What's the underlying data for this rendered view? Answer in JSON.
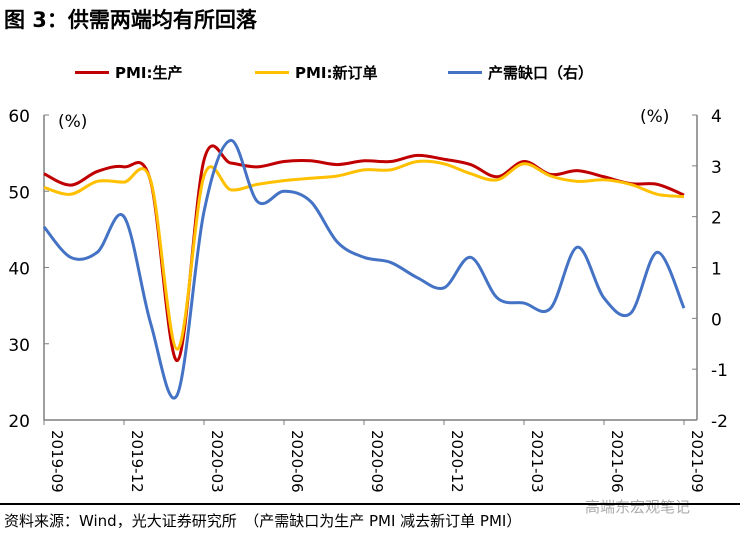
{
  "title": "图 3：供需两端均有所回落",
  "chart_data": {
    "type": "line",
    "x": [
      "2019-09",
      "2019-10",
      "2019-11",
      "2019-12",
      "2020-01",
      "2020-02",
      "2020-03",
      "2020-04",
      "2020-05",
      "2020-06",
      "2020-07",
      "2020-08",
      "2020-09",
      "2020-10",
      "2020-11",
      "2020-12",
      "2021-01",
      "2021-02",
      "2021-03",
      "2021-04",
      "2021-05",
      "2021-06",
      "2021-07",
      "2021-08",
      "2021-09"
    ],
    "xticklabels": [
      "2019-09",
      "2019-12",
      "2020-03",
      "2020-06",
      "2020-09",
      "2020-12",
      "2021-03",
      "2021-06",
      "2021-09"
    ],
    "series": [
      {
        "name": "PMI:生产",
        "axis": "left",
        "color": "#C00000",
        "values": [
          52.3,
          50.8,
          52.6,
          53.2,
          51.3,
          27.8,
          54.1,
          53.7,
          53.2,
          53.9,
          54.0,
          53.5,
          54.0,
          53.9,
          54.7,
          54.2,
          53.5,
          51.9,
          53.9,
          52.2,
          52.7,
          51.9,
          51.0,
          50.9,
          49.5
        ]
      },
      {
        "name": "PMI:新订单",
        "axis": "left",
        "color": "#FFC000",
        "values": [
          50.5,
          49.6,
          51.3,
          51.2,
          51.4,
          29.3,
          52.0,
          50.2,
          50.9,
          51.4,
          51.7,
          52.0,
          52.8,
          52.8,
          53.9,
          53.6,
          52.3,
          51.5,
          53.6,
          52.0,
          51.3,
          51.5,
          50.9,
          49.6,
          49.3
        ]
      },
      {
        "name": "产需缺口（右）",
        "axis": "right",
        "color": "#4472C4",
        "values": [
          1.8,
          1.2,
          1.3,
          2.0,
          -0.1,
          -1.5,
          2.1,
          3.5,
          2.3,
          2.5,
          2.3,
          1.5,
          1.2,
          1.1,
          0.8,
          0.6,
          1.2,
          0.4,
          0.3,
          0.2,
          1.4,
          0.4,
          0.1,
          1.3,
          0.2
        ]
      }
    ],
    "ylim_left": [
      20,
      60
    ],
    "yticks_left": [
      "60",
      "50",
      "40",
      "30",
      "20"
    ],
    "ylim_right": [
      -2,
      4
    ],
    "yticks_right": [
      "4",
      "3",
      "2",
      "1",
      "0",
      "-1",
      "-2"
    ],
    "ylabel_left": "(%)",
    "ylabel_right": "(%)",
    "grid": false,
    "legend": "top"
  },
  "footer": "资料来源：Wind，光大证券研究所　（产需缺口为生产 PMI 减去新订单 PMI）",
  "watermark": "高端东宏观笔记"
}
